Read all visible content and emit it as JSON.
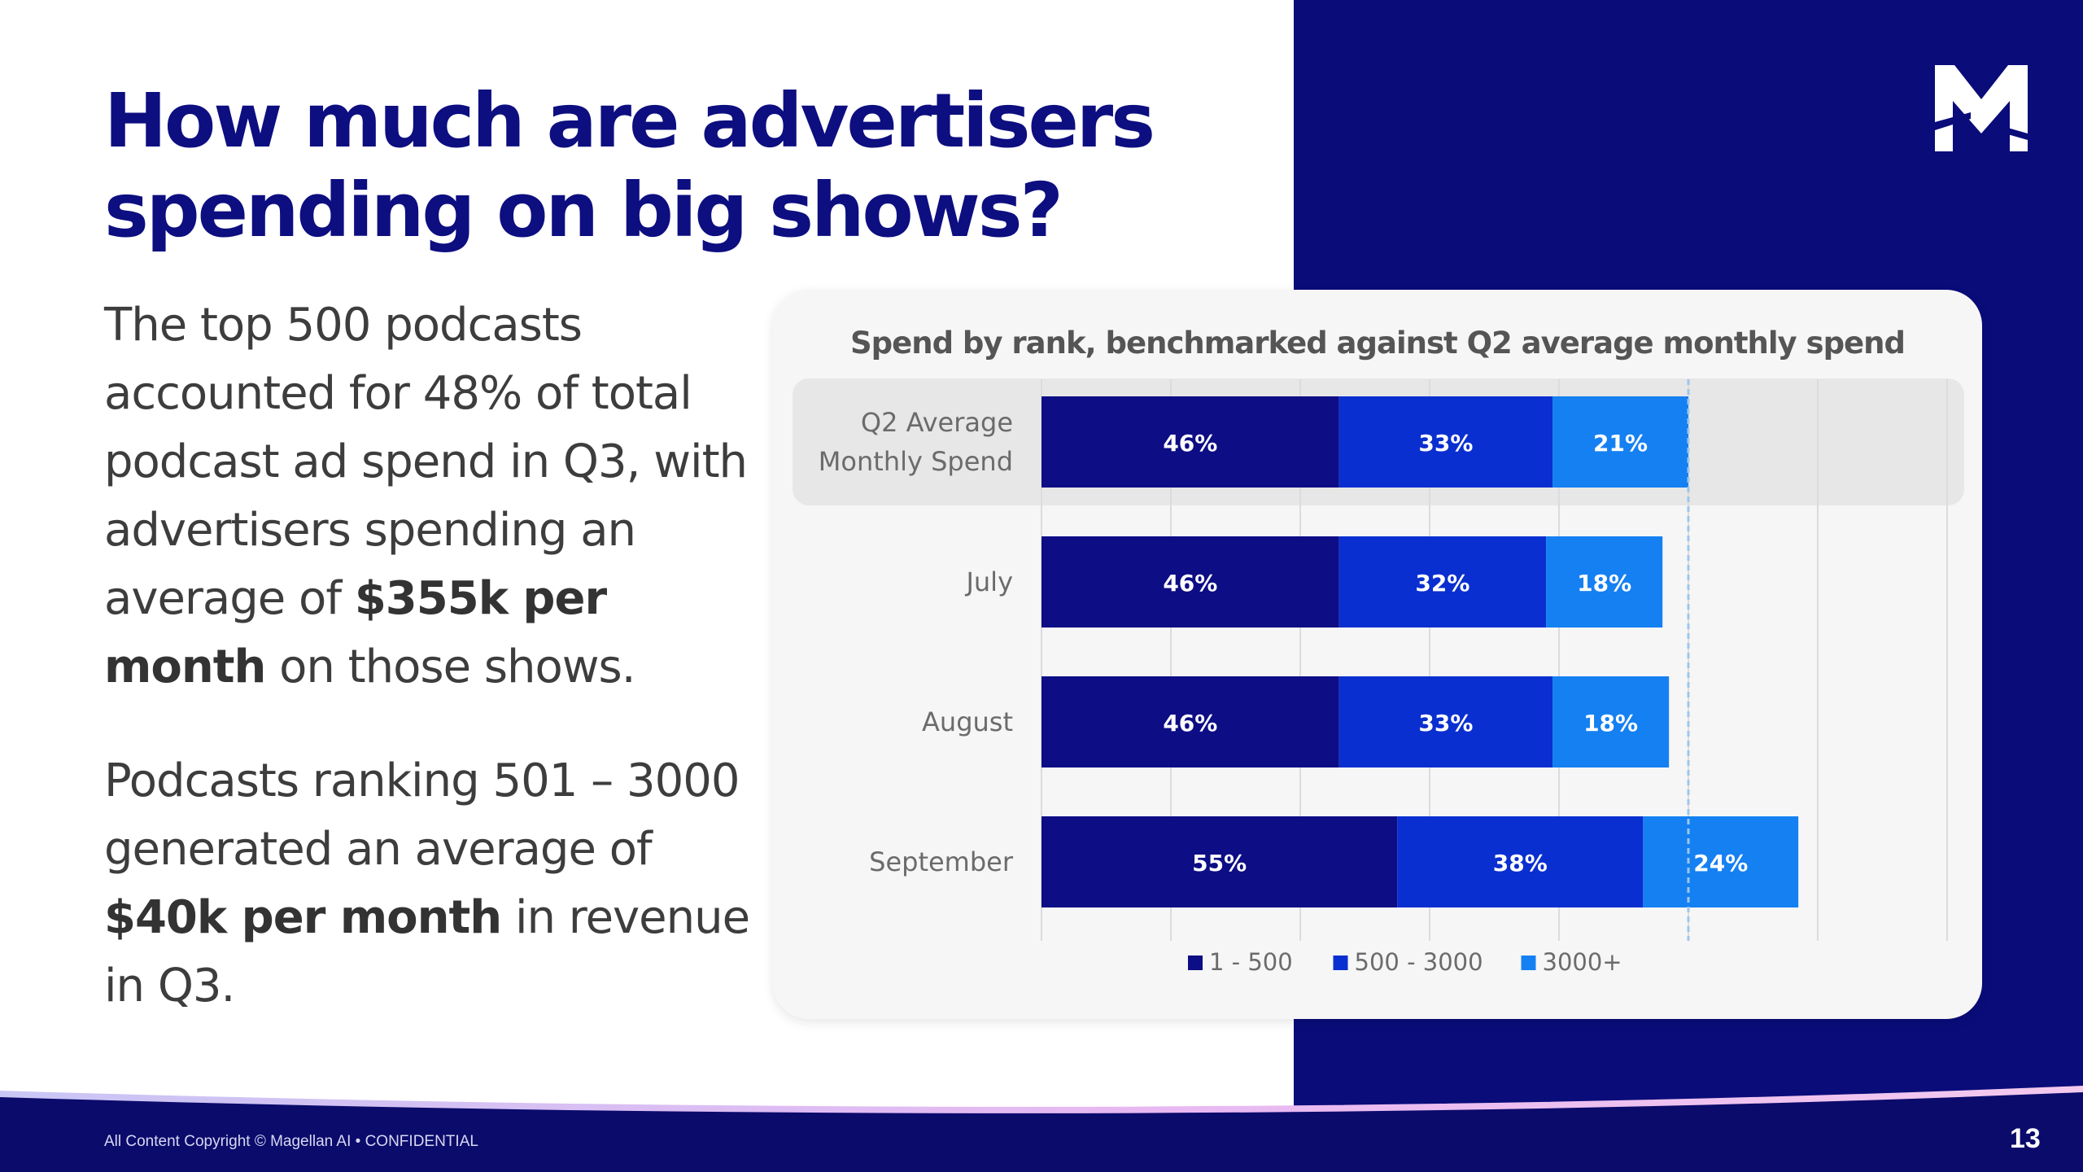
{
  "slide": {
    "title_line1": "How much are advertisers",
    "title_line2": "spending on big shows?",
    "para1": {
      "t1": "The top 500 podcasts accounted for 48% of total podcast ad spend in Q3, with advertisers spending an average of ",
      "b1": "$355k per month",
      "t2": " on those shows."
    },
    "para2": {
      "t1": "Podcasts ranking 501 – 3000 generated an average of ",
      "b1": "$40k per month",
      "t2": " in revenue in Q3."
    },
    "logo": "M-logo",
    "footer_copyright": "All Content Copyright © Magellan AI • CONFIDENTIAL",
    "page_number": "13"
  },
  "colors": {
    "navy": "#0d0e80",
    "dark_bg": "#0a0c7a",
    "series": [
      "#0d0d85",
      "#0a2fd0",
      "#1580f2"
    ],
    "highlight_row": "#e7e7e8"
  },
  "chart_data": {
    "type": "bar",
    "orientation": "horizontal",
    "stacked": true,
    "title": "Spend by rank, benchmarked against Q2 average monthly spend",
    "categories": [
      "Q2 Average\nMonthly Spend",
      "July",
      "August",
      "September"
    ],
    "highlighted_category": "Q2 Average\nMonthly Spend",
    "series": [
      {
        "name": "1 - 500",
        "values": [
          46,
          46,
          46,
          55
        ],
        "labels": [
          "46%",
          "46%",
          "46%",
          "55%"
        ]
      },
      {
        "name": "500 - 3000",
        "values": [
          33,
          32,
          33,
          38
        ],
        "labels": [
          "33%",
          "32%",
          "33%",
          "38%"
        ]
      },
      {
        "name": "3000+",
        "values": [
          21,
          18,
          18,
          24
        ],
        "labels": [
          "21%",
          "18%",
          "18%",
          "24%"
        ]
      }
    ],
    "xlim": [
      0,
      140
    ],
    "benchmark_line": 100,
    "gridlines": true,
    "legend_position": "bottom"
  }
}
